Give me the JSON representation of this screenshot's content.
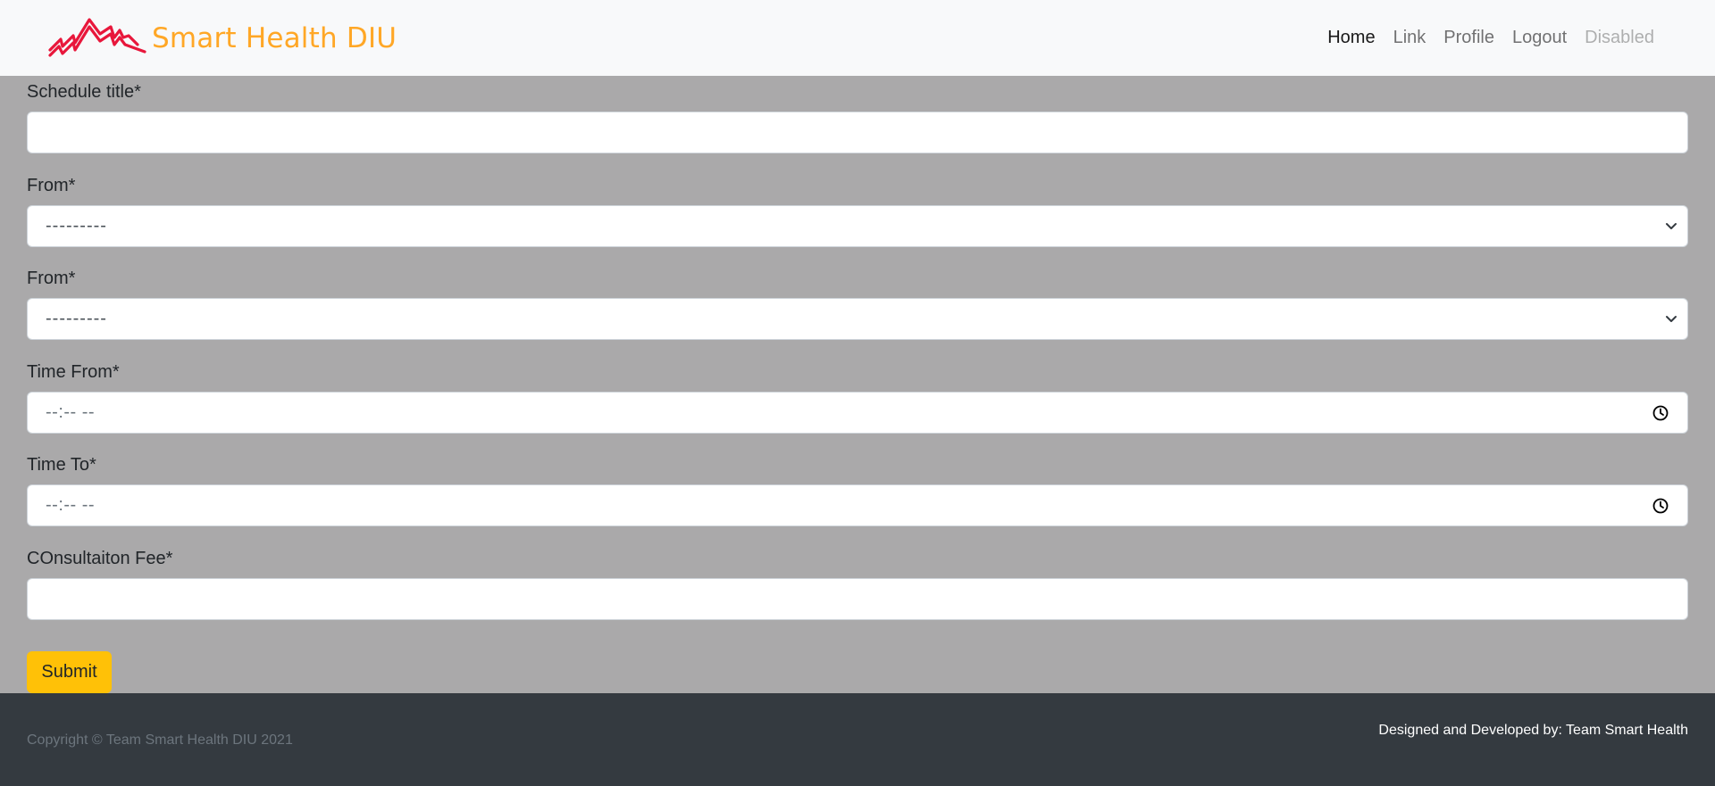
{
  "brand": {
    "name": "Smart Health DIU",
    "logo_icon": "heartbeat-mountains-logo",
    "brand_color": "#ffa726",
    "logo_color": "#e8173b"
  },
  "nav": {
    "items": [
      {
        "label": "Home",
        "state": "active"
      },
      {
        "label": "Link",
        "state": "normal"
      },
      {
        "label": "Profile",
        "state": "normal"
      },
      {
        "label": "Logout",
        "state": "normal"
      },
      {
        "label": "Disabled",
        "state": "disabled"
      }
    ]
  },
  "form": {
    "schedule_title": {
      "label": "Schedule title*",
      "value": ""
    },
    "from_1": {
      "label": "From*",
      "selected": "---------"
    },
    "from_2": {
      "label": "From*",
      "selected": "---------"
    },
    "time_from": {
      "label": "Time From*",
      "value": "--:-- --",
      "icon": "clock-icon"
    },
    "time_to": {
      "label": "Time To*",
      "value": "--:-- --",
      "icon": "clock-icon"
    },
    "consultation_fee": {
      "label": "COnsultaiton Fee*",
      "value": ""
    },
    "submit_label": "Submit"
  },
  "footer": {
    "copyright": "Copyright © Team Smart Health DIU 2021",
    "credits": "Designed and Developed by: Team Smart Health"
  },
  "colors": {
    "page_background": "#aaa9aa",
    "navbar_background": "#f8f9fa",
    "footer_background": "#343a40",
    "submit_background": "#ffc107"
  }
}
